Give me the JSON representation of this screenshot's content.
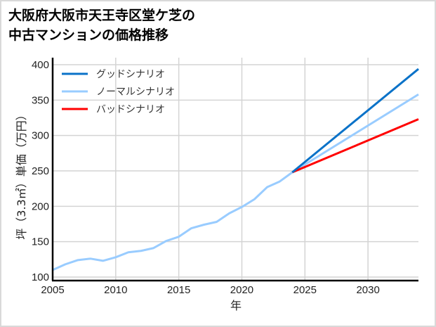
{
  "title_line1": "大阪府大阪市天王寺区堂ケ芝の",
  "title_line2": "中古マンションの価格推移",
  "chart_data": {
    "type": "line",
    "title": "大阪府大阪市天王寺区堂ケ芝の中古マンションの価格推移",
    "xlabel": "年",
    "ylabel": "坪（3.3㎡）単価（万円）",
    "xlim": [
      2005,
      2034
    ],
    "ylim": [
      95,
      405
    ],
    "xticks": [
      2005,
      2010,
      2015,
      2020,
      2025,
      2030
    ],
    "yticks": [
      100,
      150,
      200,
      250,
      300,
      350,
      400
    ],
    "grid": true,
    "legend_position": "upper left",
    "series": [
      {
        "name": "グッドシナリオ",
        "color": "#0a72c8",
        "x": [
          2024,
          2034
        ],
        "values": [
          248,
          394
        ]
      },
      {
        "name": "ノーマルシナリオ",
        "color": "#99ccff",
        "x": [
          2005,
          2006,
          2007,
          2008,
          2009,
          2010,
          2011,
          2012,
          2013,
          2014,
          2015,
          2016,
          2017,
          2018,
          2019,
          2020,
          2021,
          2022,
          2023,
          2024,
          2034
        ],
        "values": [
          110,
          118,
          124,
          126,
          123,
          128,
          135,
          137,
          141,
          151,
          157,
          169,
          174,
          178,
          190,
          199,
          210,
          227,
          235,
          248,
          358
        ]
      },
      {
        "name": "バッドシナリオ",
        "color": "#ff0000",
        "x": [
          2024,
          2034
        ],
        "values": [
          248,
          323
        ]
      }
    ]
  }
}
